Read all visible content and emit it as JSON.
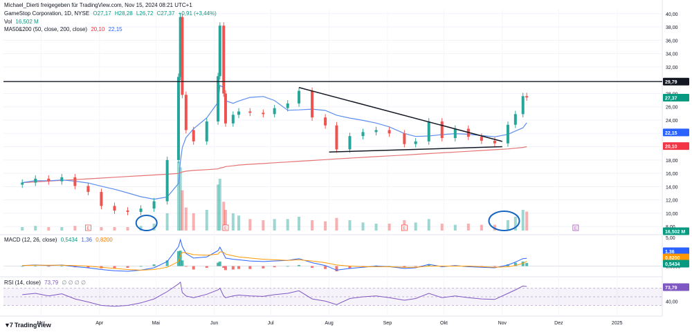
{
  "header": {
    "caption": "Michael_Dierti freigegeben für TradingView.com, Nov 15, 2024 08:21 UTC+1",
    "symbol_line": {
      "name": "GameStop Corporation, 1D, NYSE",
      "open": "O27,17",
      "high": "H28,28",
      "low": "L26,72",
      "close": "C27,37",
      "change": "+0,91 (+3,44%)"
    },
    "vol_line": {
      "label": "Vol",
      "value": "16,502 M"
    },
    "ma_line": {
      "label": "MA50&200 (50, close, 200, close)",
      "v1": "20,10",
      "v2": "22,15"
    }
  },
  "macd_legend": {
    "label": "MACD (12, 26, close)",
    "v1": "0,5434",
    "v2": "1,36",
    "v3": "0,8200"
  },
  "rsi_legend": {
    "label": "RSI (14, close)",
    "v1": "73,79",
    "v2": "∅ ∅ ∅ ∅"
  },
  "logo_text": "TradingView",
  "colors": {
    "up": "#26a69a",
    "down": "#ef5350",
    "ma50": "#5b8def",
    "ma200": "#e57373",
    "macd": "#2962ff",
    "signal": "#ff9800",
    "rsi": "#7e57c2",
    "annotation": "#1565c0"
  },
  "chart_data": {
    "type": "candlestick",
    "y_axis_ticks": [
      "40,00",
      "38,00",
      "36,00",
      "34,00",
      "32,00",
      "30,00",
      "28,00",
      "26,00",
      "24,00",
      "22,00",
      "20,00",
      "18,00",
      "16,00",
      "14,00",
      "12,00",
      "10,00",
      "8,00"
    ],
    "x_axis_ticks": [
      "Mrz",
      "Apr",
      "Mai",
      "Jun",
      "Jul",
      "Aug",
      "Sep",
      "Okt",
      "Nov",
      "Dez",
      "2025"
    ],
    "price_labels": [
      {
        "text": "29,79",
        "price": 29.79,
        "style": "black"
      },
      {
        "text": "27,37",
        "price": 27.37,
        "style": "green"
      },
      {
        "text": "22,15",
        "price": 22.15,
        "style": "blue"
      },
      {
        "text": "20,10",
        "price": 20.1,
        "style": "red"
      },
      {
        "text": "16,502 M",
        "price": 8.1,
        "style": "green"
      }
    ],
    "horizontal_line": 29.79,
    "triangle": {
      "upper": [
        [
          "2024-07-16",
          28.9
        ],
        [
          "2024-11-01",
          20.8
        ]
      ],
      "lower": [
        [
          "2024-08-01",
          19.2
        ],
        [
          "2024-11-01",
          20.0
        ]
      ]
    },
    "earnings_markers": [
      {
        "date": "2024-03-26",
        "label": "E"
      },
      {
        "date": "2024-06-07",
        "label": "E"
      },
      {
        "date": "2024-09-10",
        "label": "E"
      },
      {
        "date": "2024-12-10",
        "label": "E"
      }
    ],
    "macd_axis": [
      "5,00",
      "0,0000"
    ],
    "macd_labels": [
      "1,36",
      "0,8200",
      "0,5434"
    ],
    "rsi_axis": [
      "40,00"
    ],
    "rsi_label": "73,79",
    "series": {
      "dates": [
        "2024-02-20",
        "2024-02-27",
        "2024-03-05",
        "2024-03-12",
        "2024-03-19",
        "2024-03-26",
        "2024-04-02",
        "2024-04-09",
        "2024-04-16",
        "2024-04-23",
        "2024-04-30",
        "2024-05-07",
        "2024-05-13",
        "2024-05-14",
        "2024-05-15",
        "2024-05-17",
        "2024-05-21",
        "2024-05-28",
        "2024-06-03",
        "2024-06-04",
        "2024-06-06",
        "2024-06-07",
        "2024-06-11",
        "2024-06-14",
        "2024-06-20",
        "2024-06-27",
        "2024-07-03",
        "2024-07-10",
        "2024-07-16",
        "2024-07-23",
        "2024-07-30",
        "2024-08-05",
        "2024-08-12",
        "2024-08-19",
        "2024-08-26",
        "2024-09-02",
        "2024-09-10",
        "2024-09-16",
        "2024-09-23",
        "2024-09-30",
        "2024-10-07",
        "2024-10-14",
        "2024-10-21",
        "2024-10-28",
        "2024-11-04",
        "2024-11-08",
        "2024-11-12",
        "2024-11-14"
      ],
      "close": [
        14.6,
        15.2,
        14.8,
        15.4,
        14.1,
        13.2,
        11.1,
        10.4,
        10.2,
        10.7,
        11.8,
        18.0,
        30.5,
        39.5,
        27.8,
        22.5,
        20.8,
        23.8,
        30.6,
        38.2,
        28.0,
        23.5,
        24.8,
        25.3,
        25.1,
        24.9,
        25.8,
        26.5,
        28.4,
        24.4,
        23.2,
        19.6,
        21.6,
        22.2,
        22.5,
        22.0,
        20.4,
        20.8,
        23.8,
        21.3,
        22.7,
        21.5,
        20.9,
        20.5,
        23.3,
        24.9,
        27.6,
        27.4
      ],
      "volume_m": [
        3,
        4,
        3,
        3,
        4,
        5,
        3,
        3,
        3,
        4,
        6,
        15,
        60,
        55,
        35,
        20,
        15,
        18,
        40,
        45,
        25,
        18,
        15,
        13,
        10,
        9,
        10,
        10,
        12,
        9,
        8,
        11,
        9,
        7,
        6,
        6,
        9,
        7,
        10,
        6,
        5,
        6,
        5,
        5,
        9,
        12,
        18,
        16.502
      ],
      "macd": [
        0.1,
        0.2,
        0.1,
        0.2,
        -0.1,
        -0.3,
        -0.6,
        -0.8,
        -0.9,
        -0.7,
        -0.3,
        0.8,
        3.4,
        4.6,
        3.4,
        2.2,
        1.4,
        1.6,
        2.7,
        3.3,
        2.1,
        1.4,
        1.2,
        1.1,
        0.9,
        0.8,
        0.9,
        1.0,
        1.3,
        0.6,
        0.1,
        -0.7,
        -0.4,
        -0.2,
        0.0,
        -0.1,
        -0.4,
        -0.3,
        0.3,
        -0.1,
        0.1,
        -0.1,
        -0.2,
        -0.3,
        0.2,
        0.7,
        1.3,
        1.36
      ],
      "signal": [
        0.1,
        0.15,
        0.15,
        0.15,
        0.1,
        0.0,
        -0.2,
        -0.4,
        -0.6,
        -0.7,
        -0.6,
        -0.2,
        0.8,
        1.9,
        2.4,
        2.3,
        2.0,
        1.9,
        2.1,
        2.5,
        2.4,
        2.1,
        1.8,
        1.6,
        1.4,
        1.2,
        1.1,
        1.0,
        1.1,
        0.9,
        0.6,
        0.2,
        0.0,
        -0.1,
        -0.1,
        -0.1,
        -0.2,
        -0.2,
        0.0,
        0.0,
        0.0,
        0.0,
        -0.1,
        -0.2,
        -0.1,
        0.1,
        0.5,
        0.82
      ],
      "rsi": [
        55,
        58,
        52,
        57,
        45,
        38,
        30,
        28,
        30,
        36,
        45,
        62,
        80,
        84,
        60,
        52,
        48,
        56,
        66,
        70,
        52,
        48,
        52,
        54,
        52,
        51,
        55,
        58,
        64,
        45,
        40,
        32,
        46,
        50,
        52,
        48,
        42,
        46,
        58,
        48,
        52,
        48,
        45,
        44,
        58,
        66,
        75,
        73.79
      ]
    }
  }
}
